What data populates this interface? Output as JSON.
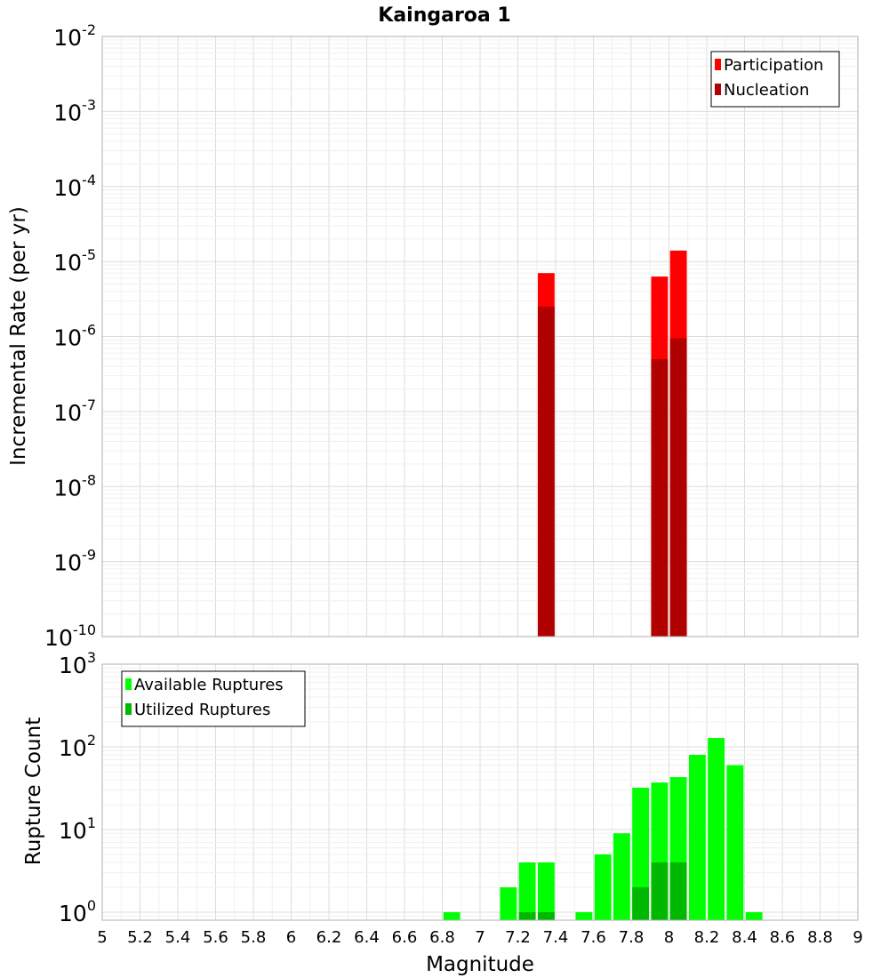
{
  "chart_data": [
    {
      "type": "bar",
      "title": "Kaingaroa 1",
      "ylabel": "Incremental Rate (per yr)",
      "xlabel": "",
      "xlim": [
        5,
        9
      ],
      "ylim": [
        1e-10,
        0.01
      ],
      "yscale": "log",
      "grid": true,
      "legend_position": "top-right",
      "bin_width": 0.1,
      "series": [
        {
          "name": "Participation",
          "color": "#ff0000",
          "x": [
            7.35,
            7.95,
            8.05
          ],
          "values": [
            7e-06,
            6.3e-06,
            1.4e-05
          ]
        },
        {
          "name": "Nucleation",
          "color": "#b00000",
          "x": [
            7.35,
            7.95,
            8.05
          ],
          "values": [
            2.5e-06,
            5e-07,
            9.5e-07
          ]
        }
      ],
      "ytick_labels": [
        {
          "base": "10",
          "exp": "-10",
          "value": 1e-10
        },
        {
          "base": "10",
          "exp": "-9",
          "value": 1e-09
        },
        {
          "base": "10",
          "exp": "-8",
          "value": 1e-08
        },
        {
          "base": "10",
          "exp": "-7",
          "value": 1e-07
        },
        {
          "base": "10",
          "exp": "-6",
          "value": 1e-06
        },
        {
          "base": "10",
          "exp": "-5",
          "value": 1e-05
        },
        {
          "base": "10",
          "exp": "-4",
          "value": 0.0001
        },
        {
          "base": "10",
          "exp": "-3",
          "value": 0.001
        },
        {
          "base": "10",
          "exp": "-2",
          "value": 0.01
        }
      ]
    },
    {
      "type": "bar",
      "title": "",
      "ylabel": "Rupture Count",
      "xlabel": "Magnitude",
      "xlim": [
        5,
        9
      ],
      "ylim": [
        0.8,
        1000
      ],
      "yscale": "log",
      "grid": true,
      "legend_position": "top-left",
      "bin_width": 0.1,
      "series": [
        {
          "name": "Available Ruptures",
          "color": "#00ff00",
          "x": [
            6.85,
            7.15,
            7.25,
            7.35,
            7.55,
            7.65,
            7.75,
            7.85,
            7.95,
            8.05,
            8.15,
            8.25,
            8.35,
            8.45
          ],
          "values": [
            1,
            2,
            4,
            4,
            1,
            5,
            9,
            32,
            37,
            43,
            80,
            128,
            60,
            1
          ]
        },
        {
          "name": "Utilized Ruptures",
          "color": "#00b800",
          "x": [
            7.25,
            7.35,
            7.85,
            7.95,
            8.05
          ],
          "values": [
            1,
            1,
            2,
            4,
            4
          ]
        }
      ],
      "ytick_labels": [
        {
          "base": "10",
          "exp": "0",
          "value": 1
        },
        {
          "base": "10",
          "exp": "1",
          "value": 10
        },
        {
          "base": "10",
          "exp": "2",
          "value": 100
        },
        {
          "base": "10",
          "exp": "3",
          "value": 1000
        }
      ],
      "xtick_labels": [
        "5",
        "5.2",
        "5.4",
        "5.6",
        "5.8",
        "6",
        "6.2",
        "6.4",
        "6.6",
        "6.8",
        "7",
        "7.2",
        "7.4",
        "7.6",
        "7.8",
        "8",
        "8.2",
        "8.4",
        "8.6",
        "8.8",
        "9"
      ],
      "xtick_values": [
        5,
        5.2,
        5.4,
        5.6,
        5.8,
        6,
        6.2,
        6.4,
        6.6,
        6.8,
        7,
        7.2,
        7.4,
        7.6,
        7.8,
        8,
        8.2,
        8.4,
        8.6,
        8.8,
        9
      ]
    }
  ],
  "colors": {
    "grid_minor": "#f0f0f0",
    "grid_major": "#dcdcdc",
    "frame": "#b0b0b0"
  }
}
